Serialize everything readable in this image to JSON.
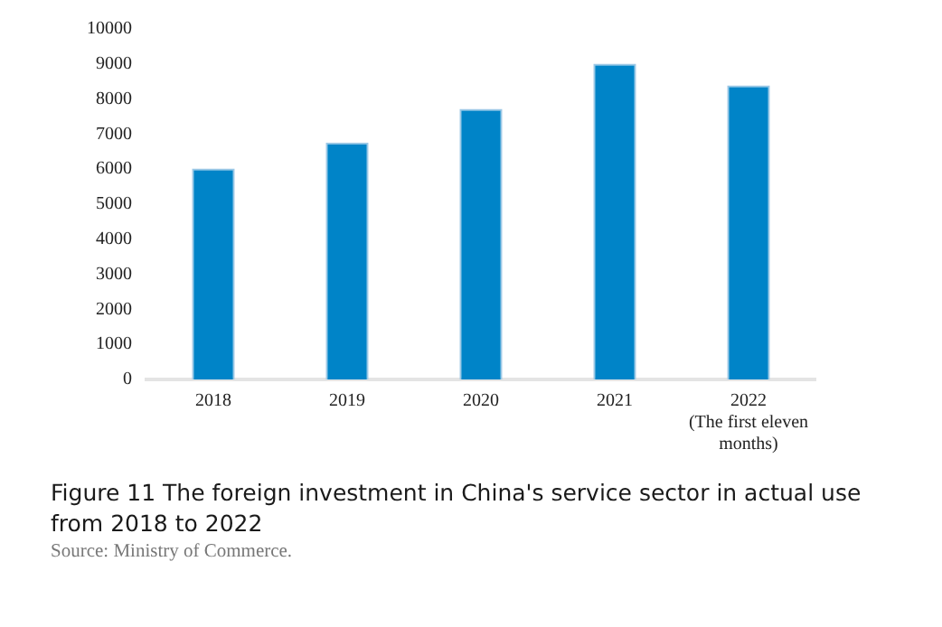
{
  "chart_data": {
    "type": "bar",
    "title": "Figure 11 The foreign investment in China's service sector in actual use from 2018 to 2022",
    "annotations": [
      "Source: Ministry of Commerce."
    ],
    "categories": [
      "2018",
      "2019",
      "2020",
      "2021",
      "2022\n(The first eleven\nmonths)"
    ],
    "values": [
      6020,
      6760,
      7720,
      9010,
      8390
    ],
    "color": "#0084c8",
    "ylim": [
      0,
      10000
    ],
    "yticks": [
      0,
      1000,
      2000,
      3000,
      4000,
      5000,
      6000,
      7000,
      8000,
      9000,
      10000
    ],
    "grid": false,
    "legend": false
  }
}
